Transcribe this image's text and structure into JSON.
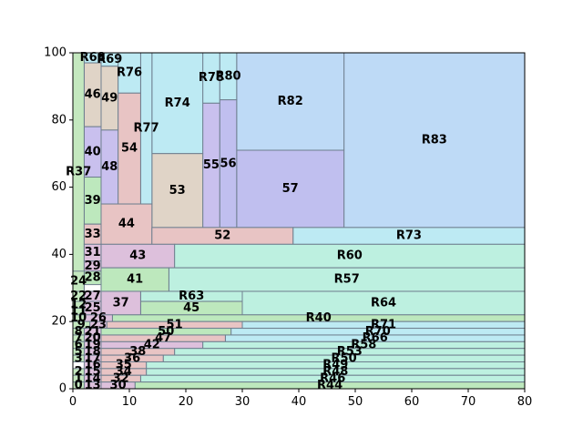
{
  "chart_data": {
    "type": "treemap",
    "title": "",
    "xlabel": "",
    "ylabel": "",
    "xlim": [
      0,
      80
    ],
    "ylim": [
      0,
      100
    ],
    "xticks": [
      "0",
      "10",
      "20",
      "30",
      "40",
      "50",
      "60",
      "70",
      "80"
    ],
    "yticks": [
      "0",
      "20",
      "40",
      "60",
      "80",
      "100"
    ],
    "grid": false,
    "palette": {
      "green": "#bde8bd",
      "pink": "#e8c4c4",
      "mauve": "#ddc0dc",
      "teal": "#bdf0e0",
      "cyan": "#bdeaf3",
      "lavender": "#c9c0ee",
      "violet": "#c0bfef",
      "tan": "#e0d4c7",
      "blue": "#bedaf6",
      "sage": "#c4e8bf"
    },
    "rects": [
      {
        "label": "R83",
        "x0": 48,
        "x1": 80,
        "y0": 48,
        "y1": 100,
        "color": "blue"
      },
      {
        "label": "R82",
        "x0": 29,
        "x1": 48,
        "y0": 71,
        "y1": 100,
        "color": "blue"
      },
      {
        "label": "57",
        "x0": 29,
        "x1": 48,
        "y0": 48,
        "y1": 71,
        "color": "violet"
      },
      {
        "label": "R80",
        "x0": 26,
        "x1": 29,
        "y0": 86,
        "y1": 100,
        "color": "cyan"
      },
      {
        "label": "56",
        "x0": 26,
        "x1": 29,
        "y0": 48,
        "y1": 86,
        "color": "violet"
      },
      {
        "label": "R78",
        "x0": 23,
        "x1": 26,
        "y0": 85,
        "y1": 100,
        "color": "cyan"
      },
      {
        "label": "55",
        "x0": 23,
        "x1": 26,
        "y0": 48,
        "y1": 85,
        "color": "lavender"
      },
      {
        "label": "R74",
        "x0": 14,
        "x1": 23,
        "y0": 70,
        "y1": 100,
        "color": "cyan"
      },
      {
        "label": "53",
        "x0": 14,
        "x1": 23,
        "y0": 48,
        "y1": 70,
        "color": "tan"
      },
      {
        "label": "R77",
        "x0": 12,
        "x1": 14,
        "y0": 55,
        "y1": 100,
        "color": "cyan"
      },
      {
        "label": "R76",
        "x0": 8,
        "x1": 12,
        "y0": 88,
        "y1": 100,
        "color": "cyan"
      },
      {
        "label": "54",
        "x0": 8,
        "x1": 12,
        "y0": 55,
        "y1": 88,
        "color": "pink"
      },
      {
        "label": "R69",
        "x0": 5,
        "x1": 8,
        "y0": 96,
        "y1": 100,
        "color": "cyan"
      },
      {
        "label": "49",
        "x0": 5,
        "x1": 8,
        "y0": 77,
        "y1": 96,
        "color": "tan"
      },
      {
        "label": "48",
        "x0": 5,
        "x1": 8,
        "y0": 55,
        "y1": 77,
        "color": "lavender"
      },
      {
        "label": "R68",
        "x0": 2,
        "x1": 5,
        "y0": 97,
        "y1": 100,
        "color": "cyan"
      },
      {
        "label": "46",
        "x0": 2,
        "x1": 5,
        "y0": 78,
        "y1": 97,
        "color": "tan"
      },
      {
        "label": "40",
        "x0": 2,
        "x1": 5,
        "y0": 63,
        "y1": 78,
        "color": "lavender"
      },
      {
        "label": "39",
        "x0": 2,
        "x1": 5,
        "y0": 49,
        "y1": 63,
        "color": "green"
      },
      {
        "label": "R37",
        "x0": 0,
        "x1": 2,
        "y0": 29,
        "y1": 100,
        "color": "sage"
      },
      {
        "label": "44",
        "x0": 5,
        "x1": 14,
        "y0": 43,
        "y1": 55,
        "color": "pink"
      },
      {
        "label": "33",
        "x0": 2,
        "x1": 5,
        "y0": 43,
        "y1": 49,
        "color": "pink"
      },
      {
        "label": "52",
        "x0": 14,
        "x1": 39,
        "y0": 43,
        "y1": 48,
        "color": "pink"
      },
      {
        "label": "R73",
        "x0": 39,
        "x1": 80,
        "y0": 43,
        "y1": 48,
        "color": "cyan"
      },
      {
        "label": "R60",
        "x0": 18,
        "x1": 80,
        "y0": 36,
        "y1": 43,
        "color": "teal"
      },
      {
        "label": "43",
        "x0": 5,
        "x1": 18,
        "y0": 36,
        "y1": 43,
        "color": "mauve"
      },
      {
        "label": "31",
        "x0": 2,
        "x1": 5,
        "y0": 38,
        "y1": 43,
        "color": "mauve"
      },
      {
        "label": "29",
        "x0": 2,
        "x1": 5,
        "y0": 35,
        "y1": 38,
        "color": "mauve"
      },
      {
        "label": "R57",
        "x0": 17,
        "x1": 80,
        "y0": 29,
        "y1": 36,
        "color": "teal"
      },
      {
        "label": "41",
        "x0": 5,
        "x1": 17,
        "y0": 29,
        "y1": 36,
        "color": "green"
      },
      {
        "label": "28",
        "x0": 2,
        "x1": 5,
        "y0": 31,
        "y1": 35,
        "color": "green"
      },
      {
        "label": "24",
        "x0": 0,
        "x1": 2,
        "y0": 29,
        "y1": 35,
        "color": "sage"
      },
      {
        "label": "R64",
        "x0": 30,
        "x1": 80,
        "y0": 22,
        "y1": 29,
        "color": "teal"
      },
      {
        "label": "R63",
        "x0": 12,
        "x1": 30,
        "y0": 26,
        "y1": 29,
        "color": "teal"
      },
      {
        "label": "45",
        "x0": 12,
        "x1": 30,
        "y0": 22,
        "y1": 26,
        "color": "green"
      },
      {
        "label": "37",
        "x0": 5,
        "x1": 12,
        "y0": 22,
        "y1": 29,
        "color": "mauve"
      },
      {
        "label": "27",
        "x0": 2,
        "x1": 5,
        "y0": 26,
        "y1": 29,
        "color": "mauve"
      },
      {
        "label": "25",
        "x0": 2,
        "x1": 5,
        "y0": 22,
        "y1": 26,
        "color": "mauve"
      },
      {
        "label": "22",
        "x0": 0,
        "x1": 2,
        "y0": 26,
        "y1": 29,
        "color": "sage"
      },
      {
        "label": "12",
        "x0": 0,
        "x1": 2,
        "y0": 24,
        "y1": 26,
        "color": "sage"
      },
      {
        "label": "11",
        "x0": 0,
        "x1": 2,
        "y0": 22,
        "y1": 24,
        "color": "sage"
      },
      {
        "label": "R40",
        "x0": 7,
        "x1": 80,
        "y0": 20,
        "y1": 22,
        "color": "green"
      },
      {
        "label": "26",
        "x0": 2,
        "x1": 7,
        "y0": 20,
        "y1": 22,
        "color": "mauve"
      },
      {
        "label": "10",
        "x0": 0,
        "x1": 2,
        "y0": 20,
        "y1": 22,
        "color": "sage"
      },
      {
        "label": "R71",
        "x0": 30,
        "x1": 80,
        "y0": 18,
        "y1": 20,
        "color": "cyan"
      },
      {
        "label": "51",
        "x0": 6,
        "x1": 30,
        "y0": 18,
        "y1": 20,
        "color": "pink"
      },
      {
        "label": "23",
        "x0": 3,
        "x1": 6,
        "y0": 18,
        "y1": 20,
        "color": "mauve"
      },
      {
        "label": "9",
        "x0": 0,
        "x1": 3,
        "y0": 18,
        "y1": 20,
        "color": "sage"
      },
      {
        "label": "R70",
        "x0": 28,
        "x1": 80,
        "y0": 16,
        "y1": 18,
        "color": "cyan"
      },
      {
        "label": "50",
        "x0": 5,
        "x1": 28,
        "y0": 16,
        "y1": 18,
        "color": "green"
      },
      {
        "label": "21",
        "x0": 2,
        "x1": 5,
        "y0": 16,
        "y1": 18,
        "color": "mauve"
      },
      {
        "label": "8",
        "x0": 0,
        "x1": 2,
        "y0": 16,
        "y1": 18,
        "color": "sage"
      },
      {
        "label": "R66",
        "x0": 27,
        "x1": 80,
        "y0": 14,
        "y1": 16,
        "color": "cyan"
      },
      {
        "label": "47",
        "x0": 5,
        "x1": 27,
        "y0": 14,
        "y1": 16,
        "color": "pink"
      },
      {
        "label": "20",
        "x0": 2,
        "x1": 5,
        "y0": 14,
        "y1": 16,
        "color": "mauve"
      },
      {
        "label": "7",
        "x0": 0,
        "x1": 2,
        "y0": 14,
        "y1": 16,
        "color": "sage"
      },
      {
        "label": "R58",
        "x0": 23,
        "x1": 80,
        "y0": 12,
        "y1": 14,
        "color": "teal"
      },
      {
        "label": "42",
        "x0": 5,
        "x1": 23,
        "y0": 12,
        "y1": 14,
        "color": "mauve"
      },
      {
        "label": "19",
        "x0": 2,
        "x1": 5,
        "y0": 12,
        "y1": 14,
        "color": "mauve"
      },
      {
        "label": "6",
        "x0": 0,
        "x1": 2,
        "y0": 12,
        "y1": 14,
        "color": "sage"
      },
      {
        "label": "R53",
        "x0": 18,
        "x1": 80,
        "y0": 10,
        "y1": 12,
        "color": "teal"
      },
      {
        "label": "38",
        "x0": 5,
        "x1": 18,
        "y0": 10,
        "y1": 12,
        "color": "pink"
      },
      {
        "label": "18",
        "x0": 2,
        "x1": 5,
        "y0": 10,
        "y1": 12,
        "color": "mauve"
      },
      {
        "label": "5",
        "x0": 0,
        "x1": 2,
        "y0": 10,
        "y1": 12,
        "color": "sage"
      },
      {
        "label": "R50",
        "x0": 16,
        "x1": 80,
        "y0": 8,
        "y1": 10,
        "color": "teal"
      },
      {
        "label": "36",
        "x0": 5,
        "x1": 16,
        "y0": 8,
        "y1": 10,
        "color": "pink"
      },
      {
        "label": "17",
        "x0": 2,
        "x1": 5,
        "y0": 8,
        "y1": 10,
        "color": "mauve"
      },
      {
        "label": "3",
        "x0": 0,
        "x1": 2,
        "y0": 8,
        "y1": 10,
        "color": "sage"
      },
      {
        "label": "R49",
        "x0": 13,
        "x1": 80,
        "y0": 6,
        "y1": 8,
        "color": "teal"
      },
      {
        "label": "35",
        "x0": 5,
        "x1": 13,
        "y0": 6,
        "y1": 8,
        "color": "pink"
      },
      {
        "label": "16",
        "x0": 2,
        "x1": 5,
        "y0": 6,
        "y1": 8,
        "color": "mauve"
      },
      {
        "label": "R48",
        "x0": 13,
        "x1": 80,
        "y0": 4,
        "y1": 6,
        "color": "teal"
      },
      {
        "label": "34",
        "x0": 5,
        "x1": 13,
        "y0": 4,
        "y1": 6,
        "color": "pink"
      },
      {
        "label": "15",
        "x0": 2,
        "x1": 5,
        "y0": 4,
        "y1": 6,
        "color": "mauve"
      },
      {
        "label": "2",
        "x0": 0,
        "x1": 2,
        "y0": 4,
        "y1": 6,
        "color": "sage"
      },
      {
        "label": "R46",
        "x0": 12,
        "x1": 80,
        "y0": 2,
        "y1": 4,
        "color": "teal"
      },
      {
        "label": "32",
        "x0": 5,
        "x1": 12,
        "y0": 2,
        "y1": 4,
        "color": "pink"
      },
      {
        "label": "14",
        "x0": 2,
        "x1": 5,
        "y0": 2,
        "y1": 4,
        "color": "mauve"
      },
      {
        "label": "1",
        "x0": 0,
        "x1": 2,
        "y0": 2,
        "y1": 4,
        "color": "sage"
      },
      {
        "label": "R44",
        "x0": 11,
        "x1": 80,
        "y0": 0,
        "y1": 2,
        "color": "green"
      },
      {
        "label": "30",
        "x0": 5,
        "x1": 11,
        "y0": 0,
        "y1": 2,
        "color": "mauve"
      },
      {
        "label": "13",
        "x0": 2,
        "x1": 5,
        "y0": 0,
        "y1": 2,
        "color": "mauve"
      },
      {
        "label": "0",
        "x0": 0,
        "x1": 2,
        "y0": 0,
        "y1": 2,
        "color": "sage"
      }
    ]
  }
}
